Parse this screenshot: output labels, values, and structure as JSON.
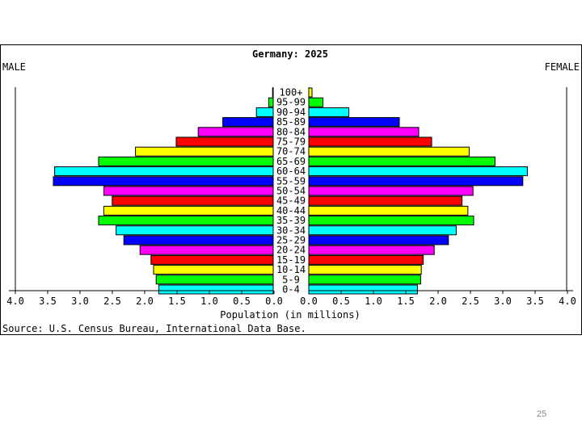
{
  "chart_data": {
    "type": "bar",
    "title": "Germany: 2025",
    "left_label": "MALE",
    "right_label": "FEMALE",
    "xlabel": "Population (in millions)",
    "source": "Source: U.S. Census Bureau, International Data Base.",
    "xlim": [
      0,
      4.0
    ],
    "x_tick_labels_left": [
      "4.0",
      "3.5",
      "3.0",
      "2.5",
      "2.0",
      "1.5",
      "1.0",
      "0.5",
      "0.0"
    ],
    "x_tick_labels_right": [
      "0.0",
      "0.5",
      "1.0",
      "1.5",
      "2.0",
      "2.5",
      "3.0",
      "3.5",
      "4.0"
    ],
    "categories": [
      "100+",
      "95-99",
      "90-94",
      "85-89",
      "80-84",
      "75-79",
      "70-74",
      "65-69",
      "60-64",
      "55-59",
      "50-54",
      "45-49",
      "40-44",
      "35-39",
      "30-34",
      "25-29",
      "20-24",
      "15-19",
      "10-14",
      "5-9",
      "0-4"
    ],
    "series": [
      {
        "name": "MALE",
        "values": [
          0.01,
          0.07,
          0.26,
          0.78,
          1.16,
          1.5,
          2.13,
          2.7,
          3.38,
          3.4,
          2.62,
          2.49,
          2.62,
          2.7,
          2.43,
          2.31,
          2.06,
          1.89,
          1.85,
          1.81,
          1.77
        ]
      },
      {
        "name": "FEMALE",
        "values": [
          0.05,
          0.22,
          0.62,
          1.4,
          1.7,
          1.9,
          2.48,
          2.88,
          3.38,
          3.31,
          2.54,
          2.37,
          2.46,
          2.55,
          2.28,
          2.16,
          1.94,
          1.77,
          1.74,
          1.73,
          1.68
        ]
      }
    ],
    "bar_colors": [
      "#ffff00",
      "#00ff00",
      "#00ffff",
      "#0000ff",
      "#ff00ff",
      "#ff0000"
    ],
    "grid": false
  },
  "page_number": "25"
}
